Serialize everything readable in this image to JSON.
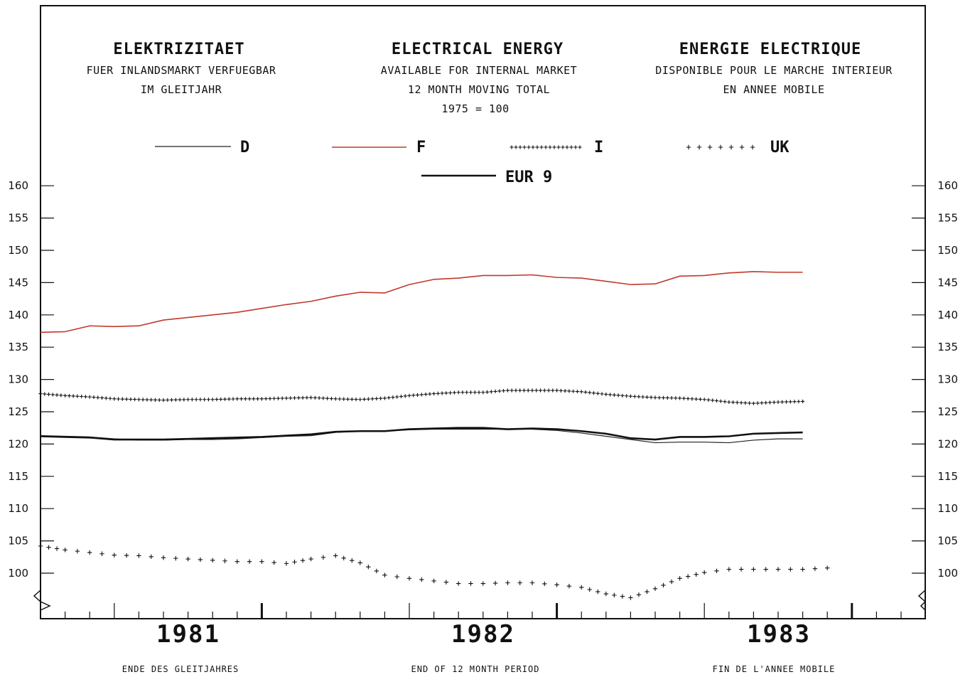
{
  "headings": {
    "de": {
      "title": "ELEKTRIZITAET",
      "line1": "FUER INLANDSMARKT VERFUEGBAR",
      "line2": "IM GLEITJAHR"
    },
    "en": {
      "title": "ELECTRICAL ENERGY",
      "line1": "AVAILABLE FOR INTERNAL MARKET",
      "line2": "12 MONTH MOVING TOTAL",
      "line3": "1975 = 100"
    },
    "fr": {
      "title": "ENERGIE ELECTRIQUE",
      "line1": "DISPONIBLE POUR LE MARCHE INTERIEUR",
      "line2": "EN ANNEE MOBILE"
    }
  },
  "footer": {
    "de": "ENDE DES GLEITJAHRES",
    "en": "END OF 12 MONTH PERIOD",
    "fr": "FIN DE L'ANNEE MOBILE"
  },
  "colors": {
    "D": "#222222",
    "F": "#c0392b",
    "I": "#222222",
    "UK": "#222222",
    "EUR9": "#111111",
    "frame": "#111111"
  },
  "chart_data": {
    "type": "line",
    "title": "ELECTRICAL ENERGY",
    "x_axis": {
      "unit": "month",
      "start": "1981-01",
      "tick_labels": [
        "1981",
        "1982",
        "1983"
      ],
      "range": [
        "1980-10",
        "1983-12"
      ]
    },
    "ylim": [
      93,
      162
    ],
    "y_ticks": [
      100,
      105,
      110,
      115,
      120,
      125,
      130,
      135,
      140,
      145,
      150,
      155,
      160
    ],
    "axis_break": true,
    "legend_position": "top",
    "series": [
      {
        "name": "D",
        "style": "thin-solid",
        "x": [
          "1980-10",
          "1980-11",
          "1980-12",
          "1981-01",
          "1981-02",
          "1981-03",
          "1981-04",
          "1981-05",
          "1981-06",
          "1981-07",
          "1981-08",
          "1981-09",
          "1981-10",
          "1981-11",
          "1981-12",
          "1982-01",
          "1982-02",
          "1982-03",
          "1982-04",
          "1982-05",
          "1982-06",
          "1982-07",
          "1982-08",
          "1982-09",
          "1982-10",
          "1982-11",
          "1982-12",
          "1983-01",
          "1983-02",
          "1983-03",
          "1983-04",
          "1983-05"
        ],
        "values": [
          121.3,
          121.2,
          121.1,
          120.8,
          120.6,
          120.6,
          120.7,
          120.7,
          120.8,
          121.0,
          121.2,
          121.3,
          121.8,
          122.0,
          122.0,
          122.2,
          122.3,
          122.3,
          122.3,
          122.3,
          122.3,
          122.1,
          121.7,
          121.2,
          120.7,
          120.2,
          120.3,
          120.3,
          120.2,
          120.6,
          120.8,
          120.8
        ]
      },
      {
        "name": "F",
        "style": "solid-red",
        "x": [
          "1980-10",
          "1980-11",
          "1980-12",
          "1981-01",
          "1981-02",
          "1981-03",
          "1981-04",
          "1981-05",
          "1981-06",
          "1981-07",
          "1981-08",
          "1981-09",
          "1981-10",
          "1981-11",
          "1981-12",
          "1982-01",
          "1982-02",
          "1982-03",
          "1982-04",
          "1982-05",
          "1982-06",
          "1982-07",
          "1982-08",
          "1982-09",
          "1982-10",
          "1982-11",
          "1982-12",
          "1983-01",
          "1983-02",
          "1983-03",
          "1983-04",
          "1983-05"
        ],
        "values": [
          137.3,
          137.4,
          138.3,
          138.2,
          138.3,
          139.2,
          139.6,
          140.0,
          140.4,
          141.0,
          141.6,
          142.1,
          142.9,
          143.5,
          143.4,
          144.7,
          145.5,
          145.7,
          146.1,
          146.1,
          146.2,
          145.8,
          145.7,
          145.2,
          144.7,
          144.8,
          146.0,
          146.1,
          146.5,
          146.7,
          146.6,
          146.6
        ]
      },
      {
        "name": "I",
        "style": "dense-crosses",
        "x": [
          "1980-10",
          "1980-11",
          "1980-12",
          "1981-01",
          "1981-02",
          "1981-03",
          "1981-04",
          "1981-05",
          "1981-06",
          "1981-07",
          "1981-08",
          "1981-09",
          "1981-10",
          "1981-11",
          "1981-12",
          "1982-01",
          "1982-02",
          "1982-03",
          "1982-04",
          "1982-05",
          "1982-06",
          "1982-07",
          "1982-08",
          "1982-09",
          "1982-10",
          "1982-11",
          "1982-12",
          "1983-01",
          "1983-02",
          "1983-03",
          "1983-04",
          "1983-05"
        ],
        "values": [
          127.8,
          127.5,
          127.3,
          127.0,
          126.9,
          126.8,
          126.9,
          126.9,
          127.0,
          127.0,
          127.1,
          127.2,
          127.0,
          126.9,
          127.1,
          127.5,
          127.8,
          128.0,
          128.0,
          128.3,
          128.3,
          128.3,
          128.1,
          127.7,
          127.4,
          127.2,
          127.1,
          126.9,
          126.5,
          126.3,
          126.5,
          126.6
        ]
      },
      {
        "name": "UK",
        "style": "spaced-crosses",
        "x": [
          "1980-10",
          "1980-11",
          "1980-12",
          "1981-01",
          "1981-02",
          "1981-03",
          "1981-04",
          "1981-05",
          "1981-06",
          "1981-07",
          "1981-08",
          "1981-09",
          "1981-10",
          "1981-11",
          "1981-12",
          "1982-01",
          "1982-02",
          "1982-03",
          "1982-04",
          "1982-05",
          "1982-06",
          "1982-07",
          "1982-08",
          "1982-09",
          "1982-10",
          "1982-11",
          "1982-12",
          "1983-01",
          "1983-02",
          "1983-03",
          "1983-04",
          "1983-05",
          "1983-06"
        ],
        "values": [
          104.2,
          103.6,
          103.2,
          102.8,
          102.7,
          102.4,
          102.2,
          102.0,
          101.8,
          101.8,
          101.5,
          102.2,
          102.7,
          101.6,
          99.7,
          99.2,
          98.8,
          98.4,
          98.4,
          98.5,
          98.5,
          98.2,
          97.8,
          96.8,
          96.2,
          97.6,
          99.2,
          100.1,
          100.6,
          100.6,
          100.6,
          100.6,
          100.8
        ]
      },
      {
        "name": "EUR 9",
        "style": "thick-solid",
        "x": [
          "1980-10",
          "1980-11",
          "1980-12",
          "1981-01",
          "1981-02",
          "1981-03",
          "1981-04",
          "1981-05",
          "1981-06",
          "1981-07",
          "1981-08",
          "1981-09",
          "1981-10",
          "1981-11",
          "1981-12",
          "1982-01",
          "1982-02",
          "1982-03",
          "1982-04",
          "1982-05",
          "1982-06",
          "1982-07",
          "1982-08",
          "1982-09",
          "1982-10",
          "1982-11",
          "1982-12",
          "1983-01",
          "1983-02",
          "1983-03",
          "1983-04",
          "1983-05"
        ],
        "values": [
          121.2,
          121.1,
          121.0,
          120.7,
          120.7,
          120.7,
          120.8,
          120.9,
          121.0,
          121.1,
          121.3,
          121.5,
          121.9,
          122.0,
          122.0,
          122.3,
          122.4,
          122.5,
          122.5,
          122.3,
          122.4,
          122.3,
          122.0,
          121.6,
          120.9,
          120.7,
          121.1,
          121.1,
          121.2,
          121.6,
          121.7,
          121.8
        ]
      }
    ]
  }
}
